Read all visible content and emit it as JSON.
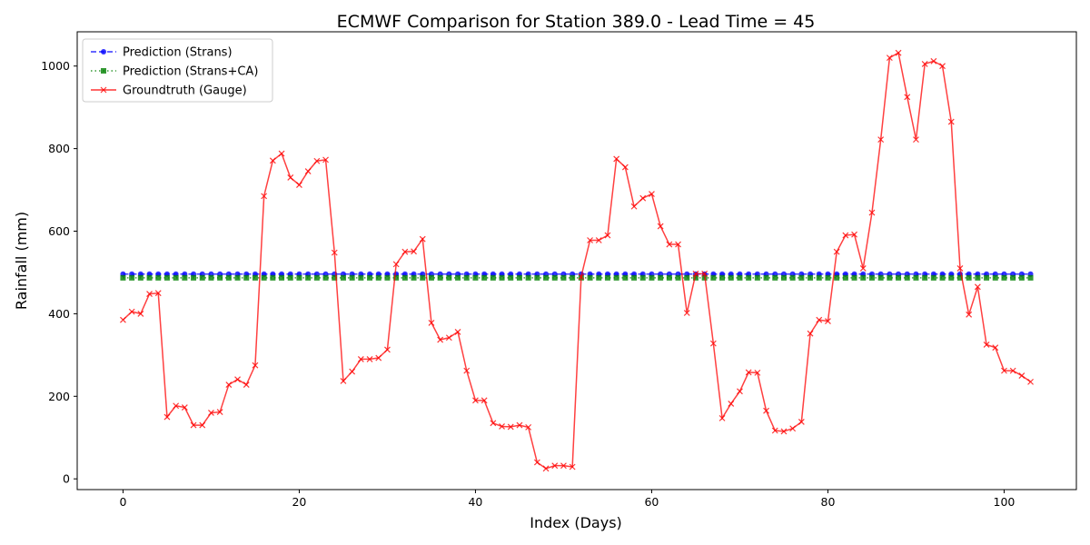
{
  "chart_data": {
    "type": "line",
    "title": "ECMWF Comparison for Station 389.0 - Lead Time = 45",
    "xlabel": "Index (Days)",
    "ylabel": "Rainfall (mm)",
    "xlim": [
      -5.2,
      108.2
    ],
    "ylim": [
      -26,
      1083
    ],
    "xticks": [
      0,
      20,
      40,
      60,
      80,
      100
    ],
    "yticks": [
      0,
      200,
      400,
      600,
      800,
      1000
    ],
    "grid": false,
    "legend_position": "top-left",
    "series": [
      {
        "name": "Prediction (Strans)",
        "color": "#0000ff",
        "linestyle": "dashed",
        "marker": "circle",
        "constant_value": 496,
        "count": 104
      },
      {
        "name": "Prediction (Strans+CA)",
        "color": "#008000",
        "linestyle": "dotted",
        "marker": "square",
        "constant_value": 487,
        "count": 104
      },
      {
        "name": "Groundtruth (Gauge)",
        "color": "#ff0000",
        "linestyle": "solid",
        "marker": "x",
        "values": [
          385,
          405,
          400,
          448,
          450,
          150,
          177,
          173,
          130,
          130,
          160,
          162,
          228,
          241,
          228,
          275,
          685,
          771,
          788,
          730,
          712,
          745,
          770,
          773,
          548,
          237,
          260,
          290,
          290,
          293,
          313,
          520,
          550,
          551,
          581,
          378,
          337,
          342,
          356,
          262,
          190,
          190,
          135,
          127,
          126,
          130,
          125,
          40,
          25,
          32,
          32,
          29,
          490,
          578,
          578,
          590,
          775,
          755,
          660,
          680,
          690,
          612,
          568,
          568,
          402,
          497,
          497,
          328,
          147,
          182,
          212,
          258,
          257,
          165,
          117,
          115,
          122,
          138,
          352,
          385,
          382,
          550,
          590,
          592,
          510,
          645,
          822,
          1020,
          1032,
          925,
          822,
          1005,
          1012,
          1000,
          865,
          510,
          398,
          465,
          325,
          318,
          262,
          262,
          250,
          235
        ]
      }
    ]
  }
}
